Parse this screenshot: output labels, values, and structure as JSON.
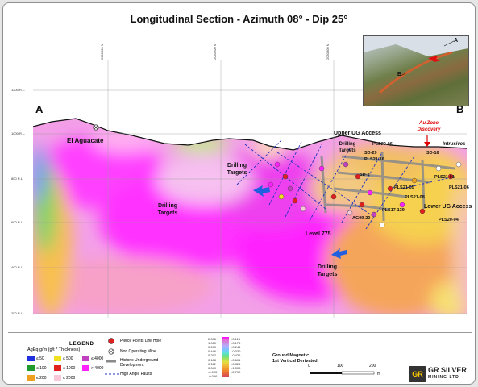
{
  "title": "Longitudinal Section - Azimuth 08° - Dip 25°",
  "section_ends": {
    "left": "A",
    "right": "B"
  },
  "rl_labels": [
    "1200 R.L.",
    "1000 R.L.",
    "800 R.L.",
    "600 R.L.",
    "400 R.L.",
    "200 R.L."
  ],
  "grid_labels": [
    "2050300 N",
    "2050200 N",
    "2050300 N"
  ],
  "map_labels": {
    "el_aguacate": "El Aguacate",
    "drilling_targets": "Drilling Targets",
    "drilling_targets_2": "Drilling Targets",
    "drilling_targets_3": "Drilling Targets",
    "drilling_targets_4": "Drilling Targets",
    "upper_ug": "Upper UG Access",
    "lower_ug": "Lower UG Access",
    "level_775": "Level 775",
    "au_zone": "Au Zone Discovery",
    "intrusives": "Intrusives"
  },
  "hole_labels": [
    "PLS20-06",
    "SD-29",
    "PLS21-16",
    "SD-16",
    "PLS21-01",
    "PLS21-06",
    "PLS20-04",
    "PLS21-08",
    "PLS21-05",
    "PLS17-139",
    "AG09-20",
    "SD-2"
  ],
  "inset_labels": {
    "a": "A",
    "b": "B"
  },
  "legend": {
    "title": "LEGEND",
    "subtitle": "AgEq g/m (g/t * Thickness)",
    "classes": [
      {
        "label": "≤ 50",
        "color": "#1f2fe0"
      },
      {
        "label": "≤ 100",
        "color": "#1f9a2f"
      },
      {
        "label": "≤ 200",
        "color": "#f0a020"
      },
      {
        "label": "≤ 500",
        "color": "#f0e020"
      },
      {
        "label": "≤ 1000",
        "color": "#e01f1f"
      },
      {
        "label": "≤ 2000",
        "color": "#f8c8d8"
      },
      {
        "label": "≤ 4000",
        "color": "#c040c0"
      },
      {
        "label": "> 4000",
        "color": "#ff20ff"
      }
    ],
    "symbols": {
      "pierce": "Pierce Points Drill Hole",
      "mine": "Non Operating Mine",
      "historic": "Historic Underground Development",
      "faults": "High Angle Faults"
    },
    "colorbar_left": [
      "2.006",
      "1.060",
      "0.670",
      "0.446",
      "0.292",
      "0.188",
      "0.112",
      "0.040",
      "-0.005",
      "-0.056"
    ],
    "colorbar_right": [
      "-0.115",
      "-0.176",
      "-0.244",
      "-0.330",
      "-0.436",
      "-0.601",
      "-0.825",
      "-1.308",
      "-2.702"
    ],
    "gm_title": "Ground Magnetic",
    "gm_sub": "1st Vertical Derivated",
    "scale_labels": [
      "0",
      "100",
      "200"
    ],
    "scale_unit": "m"
  },
  "logo": {
    "mark": "GR",
    "name": "GR SILVER",
    "sub": "MINING LTD"
  },
  "colors": {
    "magenta": "#ff00ff",
    "pink": "#f7b8e8",
    "orange": "#f5a04a",
    "yellow": "#f6e04a",
    "green": "#7ed36a",
    "blue_arrow": "#1f5fe0"
  }
}
